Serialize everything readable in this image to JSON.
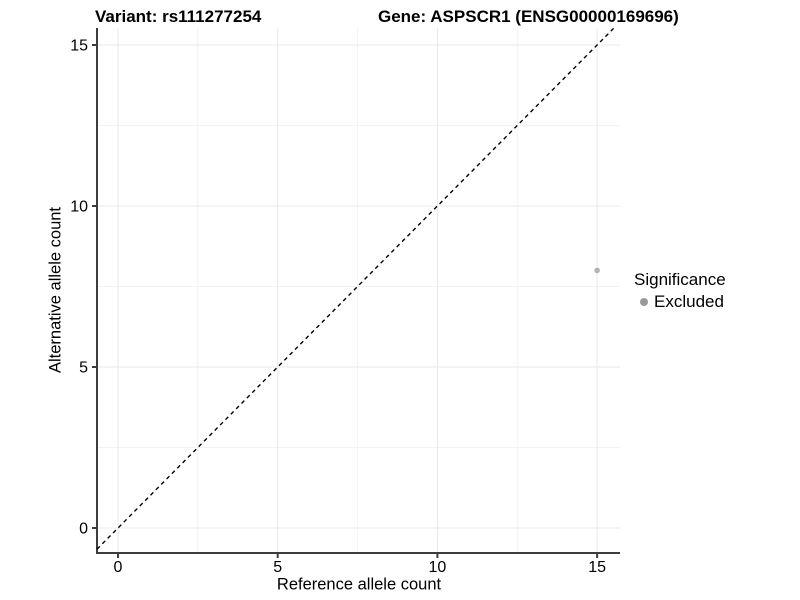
{
  "chart_data": {
    "type": "scatter",
    "title_variant": "Variant: rs111277254",
    "title_gene": "Gene: ASPSCR1 (ENSG00000169696)",
    "xlabel": "Reference allele count",
    "ylabel": "Alternative allele count",
    "xlim": [
      -0.657,
      15.717
    ],
    "ylim": [
      -0.776,
      15.528
    ],
    "x_ticks": [
      0,
      5,
      10,
      15
    ],
    "y_ticks": [
      0,
      5,
      10,
      15
    ],
    "x_minor_ticks": [
      2.5,
      7.5,
      12.5
    ],
    "y_minor_ticks": [
      2.5,
      7.5,
      12.5
    ],
    "grid": true,
    "series": [
      {
        "name": "Excluded",
        "color": "#b3b3b3",
        "points": [
          {
            "x": 15,
            "y": 8
          }
        ]
      }
    ],
    "identity_line": {
      "style": "dashed",
      "slope": 1,
      "intercept": 0,
      "color": "#000000"
    },
    "legend": {
      "title": "Significance",
      "position": "right",
      "items": [
        {
          "label": "Excluded",
          "color": "#999999"
        }
      ]
    },
    "colors": {
      "background": "#ffffff",
      "grid_major": "#e9e9e9",
      "grid_minor": "#f3f3f3",
      "axis_line": "#3d3d3d",
      "tick_label": "#000000"
    }
  }
}
